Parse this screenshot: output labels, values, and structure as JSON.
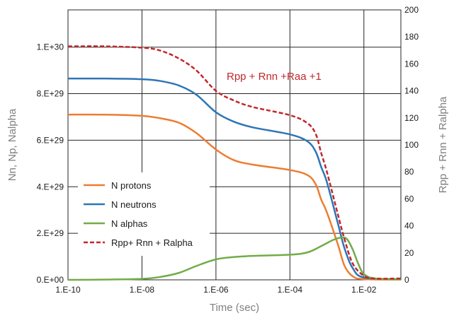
{
  "chart_data": {
    "type": "line",
    "x_scale": "log",
    "xlabel": "Time (sec)",
    "ylabel_left": "Nn, Np, Nalpha",
    "ylabel_right": "Rpp + Rnn + Ralpha",
    "xlim": [
      1e-10,
      0.1
    ],
    "ylim_left": [
      0,
      1.16e+30
    ],
    "ylim_right": [
      0,
      200
    ],
    "grid": true,
    "legend_position": "left-middle",
    "x_ticks": [
      {
        "value": 1e-10,
        "label": "1.E-10"
      },
      {
        "value": 1e-08,
        "label": "1.E-08"
      },
      {
        "value": 1e-06,
        "label": "1.E-06"
      },
      {
        "value": 0.0001,
        "label": "1.E-04"
      },
      {
        "value": 0.01,
        "label": "1.E-02"
      }
    ],
    "y_left_ticks": [
      {
        "value": 0,
        "label": "0.E+00"
      },
      {
        "value": 2e+29,
        "label": "2.E+29"
      },
      {
        "value": 4e+29,
        "label": "4.E+29"
      },
      {
        "value": 6e+29,
        "label": "6.E+29"
      },
      {
        "value": 8e+29,
        "label": "8.E+29"
      },
      {
        "value": 1e+30,
        "label": "1.E+30"
      }
    ],
    "y_right_ticks": [
      {
        "value": 0,
        "label": "0"
      },
      {
        "value": 20,
        "label": "20"
      },
      {
        "value": 40,
        "label": "40"
      },
      {
        "value": 60,
        "label": "60"
      },
      {
        "value": 80,
        "label": "80"
      },
      {
        "value": 100,
        "label": "100"
      },
      {
        "value": 120,
        "label": "120"
      },
      {
        "value": 140,
        "label": "140"
      },
      {
        "value": 160,
        "label": "160"
      },
      {
        "value": 180,
        "label": "180"
      },
      {
        "value": 200,
        "label": "200"
      }
    ],
    "annotation": {
      "text": "Rpp + Rnn +Raa +1",
      "color": "#c0282d"
    },
    "series": [
      {
        "name": "N protons",
        "axis": "left",
        "color": "#ed7d31",
        "dash": false,
        "points": [
          [
            1e-10,
            7.1e+29
          ],
          [
            1e-09,
            7.1e+29
          ],
          [
            1e-08,
            7.05e+29
          ],
          [
            3e-08,
            6.95e+29
          ],
          [
            1e-07,
            6.75e+29
          ],
          [
            3e-07,
            6.3e+29
          ],
          [
            1e-06,
            5.6e+29
          ],
          [
            3e-06,
            5.15e+29
          ],
          [
            1e-05,
            4.95e+29
          ],
          [
            0.0001,
            4.72e+29
          ],
          [
            0.0003,
            4.5e+29
          ],
          [
            0.0005,
            4.1e+29
          ],
          [
            0.0007,
            3.45e+29
          ],
          [
            0.001,
            2.9e+29
          ],
          [
            0.002,
            1.5e+29
          ],
          [
            0.003,
            6e+28
          ],
          [
            0.005,
            1.5e+28
          ],
          [
            0.01,
            3e+27
          ],
          [
            0.1,
            1e+27
          ]
        ]
      },
      {
        "name": "N neutrons",
        "axis": "left",
        "color": "#2e75b6",
        "dash": false,
        "points": [
          [
            1e-10,
            8.65e+29
          ],
          [
            1e-09,
            8.65e+29
          ],
          [
            1e-08,
            8.62e+29
          ],
          [
            3e-08,
            8.55e+29
          ],
          [
            1e-07,
            8.35e+29
          ],
          [
            3e-07,
            7.95e+29
          ],
          [
            1e-06,
            7.2e+29
          ],
          [
            3e-06,
            6.8e+29
          ],
          [
            1e-05,
            6.55e+29
          ],
          [
            0.0001,
            6.25e+29
          ],
          [
            0.0003,
            5.95e+29
          ],
          [
            0.0005,
            5.5e+29
          ],
          [
            0.0007,
            4.85e+29
          ],
          [
            0.001,
            4.2e+29
          ],
          [
            0.002,
            2.4e+29
          ],
          [
            0.003,
            1.35e+29
          ],
          [
            0.005,
            5e+28
          ],
          [
            0.01,
            1e+28
          ],
          [
            0.1,
            2e+27
          ]
        ]
      },
      {
        "name": "N alphas",
        "axis": "left",
        "color": "#70ad47",
        "dash": false,
        "points": [
          [
            1e-10,
            0
          ],
          [
            1e-09,
            1e+27
          ],
          [
            1e-08,
            4e+27
          ],
          [
            3e-08,
            1.2e+28
          ],
          [
            1e-07,
            3e+28
          ],
          [
            3e-07,
            6e+28
          ],
          [
            1e-06,
            8.8e+28
          ],
          [
            3e-06,
            9.8e+28
          ],
          [
            1e-05,
            1.03e+29
          ],
          [
            0.0001,
            1.08e+29
          ],
          [
            0.0003,
            1.18e+29
          ],
          [
            0.0007,
            1.45e+29
          ],
          [
            0.0015,
            1.72e+29
          ],
          [
            0.0025,
            1.82e+29
          ],
          [
            0.0035,
            1.75e+29
          ],
          [
            0.005,
            1.3e+29
          ],
          [
            0.007,
            7e+28
          ],
          [
            0.01,
            2.5e+28
          ],
          [
            0.02,
            6e+27
          ],
          [
            0.1,
            2e+27
          ]
        ]
      },
      {
        "name": "Rpp+ Rnn + Ralpha",
        "axis": "right",
        "color": "#c0282d",
        "dash": true,
        "points": [
          [
            1e-10,
            173
          ],
          [
            1e-09,
            173
          ],
          [
            1e-08,
            172
          ],
          [
            3e-08,
            170
          ],
          [
            1e-07,
            164
          ],
          [
            3e-07,
            155
          ],
          [
            1e-06,
            140
          ],
          [
            3e-06,
            133
          ],
          [
            1e-05,
            128
          ],
          [
            0.0001,
            122
          ],
          [
            0.0003,
            116
          ],
          [
            0.0005,
            108
          ],
          [
            0.0007,
            94
          ],
          [
            0.001,
            80
          ],
          [
            0.002,
            48
          ],
          [
            0.003,
            30
          ],
          [
            0.005,
            12
          ],
          [
            0.01,
            3
          ],
          [
            0.02,
            1
          ],
          [
            0.1,
            1
          ]
        ]
      }
    ]
  }
}
